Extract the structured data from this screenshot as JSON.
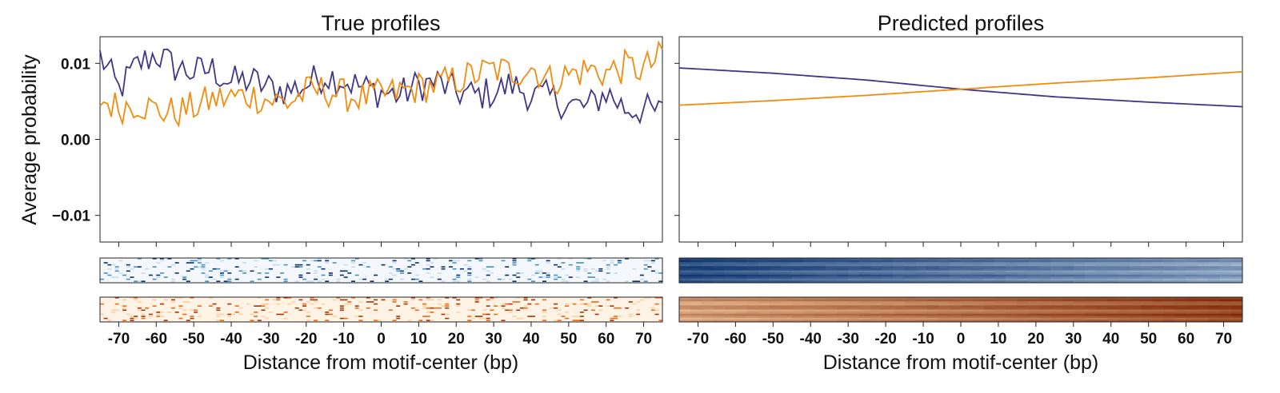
{
  "chart_data": [
    {
      "type": "line",
      "title": "True profiles",
      "xlabel": "Distance from motif-center (bp)",
      "ylabel": "Average probability",
      "xlim": [
        -75,
        75
      ],
      "ylim": [
        -0.0135,
        0.0135
      ],
      "yticks": [
        0.01,
        0.0,
        -0.01
      ],
      "ytick_labels": [
        "0.01",
        "0.00",
        "−0.01"
      ],
      "xticks": [
        -70,
        -60,
        -50,
        -40,
        -30,
        -20,
        -10,
        0,
        10,
        20,
        30,
        40,
        50,
        60,
        70
      ],
      "grid": false,
      "colors": {
        "series_1": "#3f3686",
        "series_2": "#f38b0f"
      },
      "series": [
        {
          "x": [
            -75,
            -70,
            -65,
            -60,
            -55,
            -50,
            -45,
            -40,
            -35,
            -30,
            -25,
            -20,
            -15,
            -10,
            -5,
            0,
            5,
            10,
            15,
            20,
            25,
            30,
            35,
            40,
            45,
            50,
            55,
            60,
            65,
            70,
            75
          ],
          "values": [
            0.011,
            0.0065,
            0.0098,
            0.0112,
            0.0095,
            0.0088,
            0.0092,
            0.0075,
            0.0078,
            0.0068,
            0.0064,
            0.0072,
            0.0085,
            0.0078,
            0.0068,
            0.0062,
            0.0058,
            0.0072,
            0.0075,
            0.0062,
            0.0058,
            0.0062,
            0.0072,
            0.0058,
            0.0055,
            0.0046,
            0.0042,
            0.0062,
            0.0041,
            0.0039,
            0.0035
          ]
        },
        {
          "x": [
            -75,
            -70,
            -65,
            -60,
            -55,
            -50,
            -45,
            -40,
            -35,
            -30,
            -25,
            -20,
            -15,
            -10,
            -5,
            0,
            5,
            10,
            15,
            20,
            25,
            30,
            35,
            40,
            45,
            50,
            55,
            60,
            65,
            70,
            75
          ],
          "values": [
            0.0052,
            0.0042,
            0.0048,
            0.0038,
            0.0035,
            0.0042,
            0.0052,
            0.0055,
            0.0058,
            0.0052,
            0.0048,
            0.0062,
            0.0065,
            0.0058,
            0.0055,
            0.0058,
            0.0062,
            0.0068,
            0.0072,
            0.0078,
            0.0085,
            0.0092,
            0.0088,
            0.0095,
            0.0078,
            0.0085,
            0.0092,
            0.0088,
            0.0095,
            0.0092,
            0.011
          ]
        }
      ],
      "heatmap_colormaps": [
        "Blues",
        "Oranges"
      ]
    },
    {
      "type": "line",
      "title": "Predicted profiles",
      "xlabel": "Distance from motif-center (bp)",
      "xlim": [
        -75,
        75
      ],
      "ylim": [
        -0.0135,
        0.0135
      ],
      "xticks": [
        -70,
        -60,
        -50,
        -40,
        -30,
        -20,
        -10,
        0,
        10,
        20,
        30,
        40,
        50,
        60,
        70
      ],
      "grid": false,
      "colors": {
        "series_1": "#3f3686",
        "series_2": "#f38b0f"
      },
      "series": [
        {
          "x": [
            -75,
            -50,
            -25,
            0,
            25,
            50,
            75
          ],
          "values": [
            0.0094,
            0.0087,
            0.0078,
            0.0066,
            0.0056,
            0.0049,
            0.0043
          ]
        },
        {
          "x": [
            -75,
            -50,
            -25,
            0,
            25,
            50,
            75
          ],
          "values": [
            0.0045,
            0.0051,
            0.0058,
            0.0066,
            0.0074,
            0.0081,
            0.0089
          ]
        }
      ],
      "heatmap_colormaps": [
        "Blues",
        "Oranges"
      ]
    }
  ]
}
